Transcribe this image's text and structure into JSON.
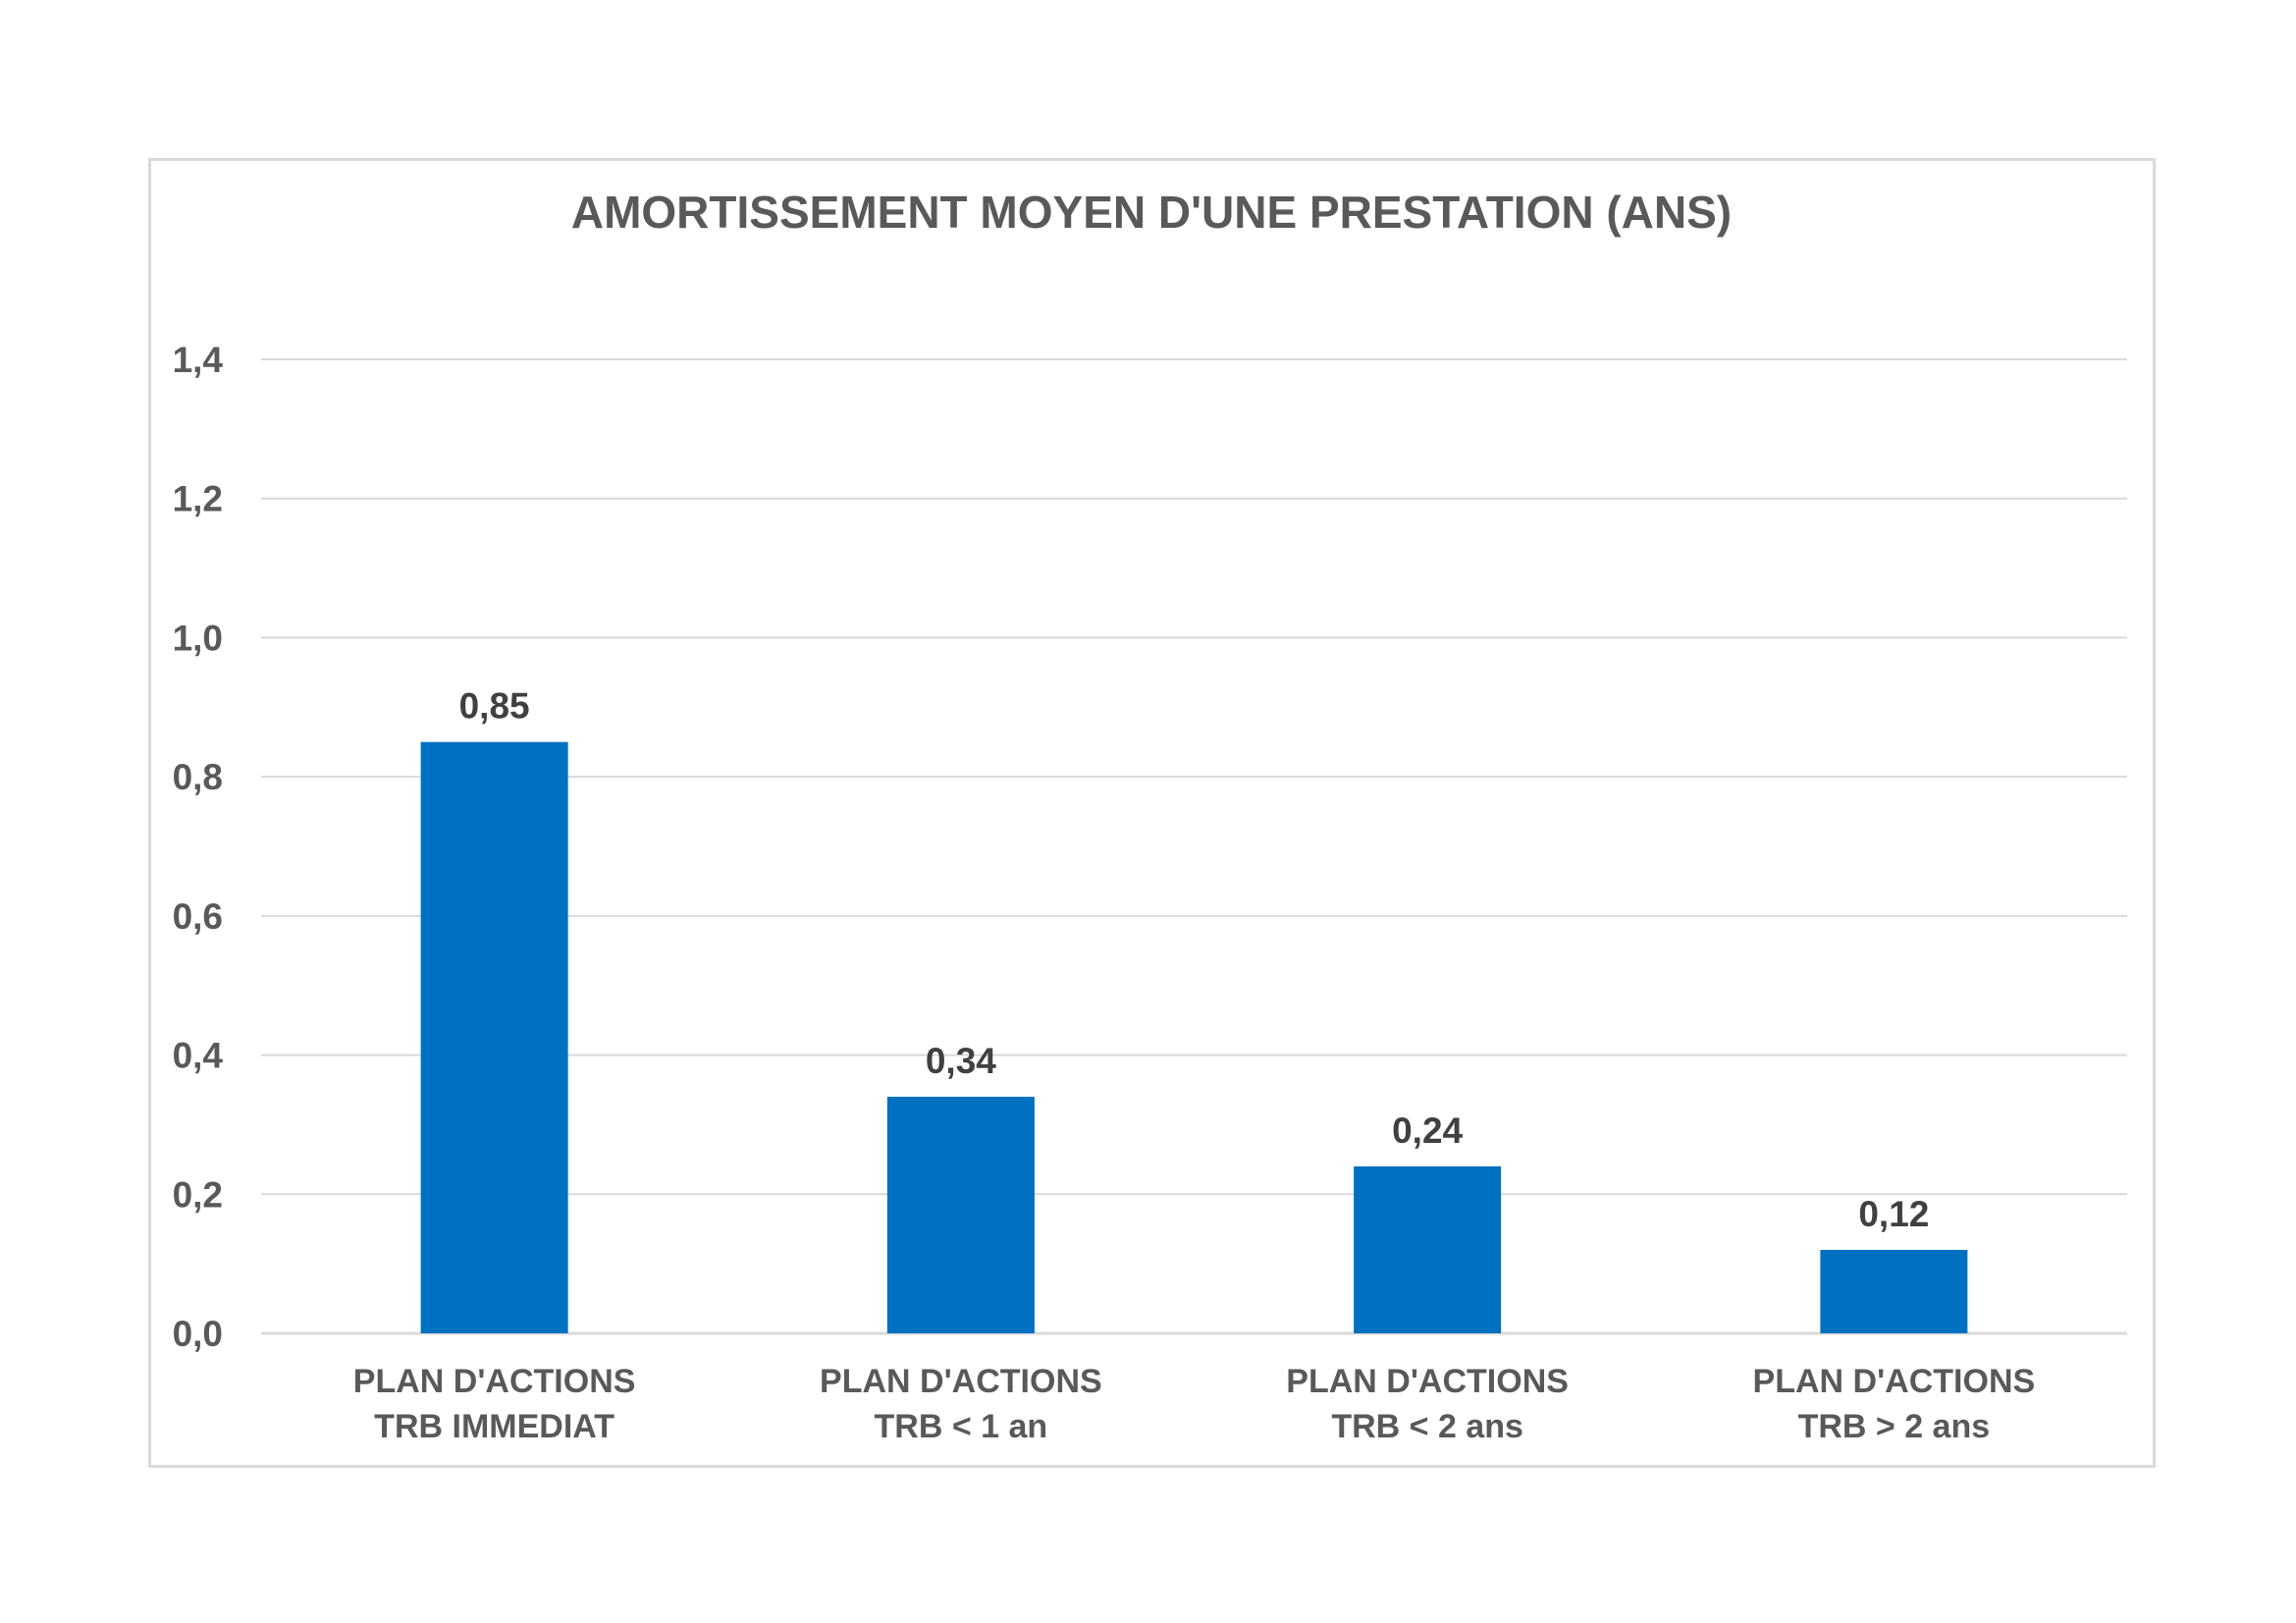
{
  "chart_data": {
    "type": "bar",
    "title": "AMORTISSEMENT MOYEN  D'UNE PRESTATION (ANS)",
    "xlabel": "",
    "ylabel": "",
    "categories": [
      [
        "PLAN D'ACTIONS",
        "TRB IMMEDIAT"
      ],
      [
        "PLAN D'ACTIONS",
        "TRB < 1 an"
      ],
      [
        "PLAN D'ACTIONS",
        "TRB < 2 ans"
      ],
      [
        "PLAN D'ACTIONS",
        "TRB > 2 ans"
      ]
    ],
    "values": [
      0.85,
      0.34,
      0.24,
      0.12
    ],
    "value_labels": [
      "0,85",
      "0,34",
      "0,24",
      "0,12"
    ],
    "ylim": [
      0,
      1.4
    ],
    "yticks": [
      0,
      0.2,
      0.4,
      0.6,
      0.8,
      1.0,
      1.2,
      1.4
    ],
    "ytick_labels": [
      "0,0",
      "0,2",
      "0,4",
      "0,6",
      "0,8",
      "1,0",
      "1,2",
      "1,4"
    ],
    "grid": true,
    "legend": "none",
    "colors": {
      "bar": "#0070C0",
      "grid": "#d9d9d9",
      "text": "#595959",
      "label": "#404040"
    }
  }
}
